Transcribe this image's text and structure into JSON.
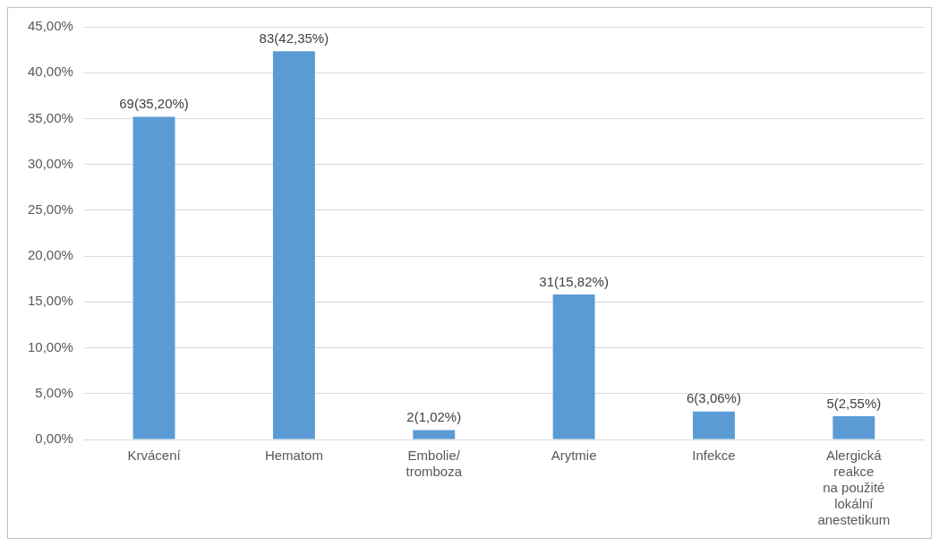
{
  "chart_data": {
    "type": "bar",
    "categories": [
      "Krvácení",
      "Hematom",
      "Embolie/\ntromboza",
      "Arytmie",
      "Infekce",
      "Alergická\nreakce\nna použité\nlokální\nanestetikum"
    ],
    "values": [
      35.2,
      42.35,
      1.02,
      15.82,
      3.06,
      2.55
    ],
    "value_labels": [
      "69(35,20%)",
      "83(42,35%)",
      "2(1,02%)",
      "31(15,82%)",
      "6(3,06%)",
      "5(2,55%)"
    ],
    "color": "#5b9bd5",
    "ylim": [
      0,
      45
    ],
    "yticks": [
      {
        "value": 0,
        "label": "0,00%"
      },
      {
        "value": 5,
        "label": "5,00%"
      },
      {
        "value": 10,
        "label": "10,00%"
      },
      {
        "value": 15,
        "label": "15,00%"
      },
      {
        "value": 20,
        "label": "20,00%"
      },
      {
        "value": 25,
        "label": "25,00%"
      },
      {
        "value": 30,
        "label": "30,00%"
      },
      {
        "value": 35,
        "label": "35,00%"
      },
      {
        "value": 40,
        "label": "40,00%"
      },
      {
        "value": 45,
        "label": "45,00%"
      }
    ],
    "grid": "y"
  }
}
